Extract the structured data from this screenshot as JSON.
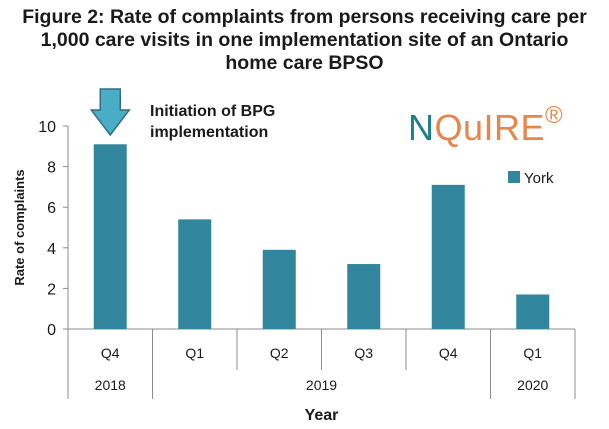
{
  "chart_data": {
    "type": "bar",
    "title_lines": [
      "Figure 2: Rate of complaints from persons receiving care per",
      "1,000 care visits in one implementation site of an Ontario",
      "home care BPSO"
    ],
    "xlabel": "Year",
    "ylabel": "Rate of complaints",
    "ylim": [
      0,
      10
    ],
    "yticks": [
      "0",
      "2",
      "4",
      "6",
      "8",
      "10"
    ],
    "categories": [
      "Q4",
      "Q1",
      "Q2",
      "Q3",
      "Q4",
      "Q1"
    ],
    "year_groups": [
      {
        "label": "2018",
        "span": 1
      },
      {
        "label": "2019",
        "span": 4
      },
      {
        "label": "2020",
        "span": 1
      }
    ],
    "series": [
      {
        "name": "York",
        "color": "#31859c",
        "values": [
          9.1,
          5.4,
          3.9,
          3.2,
          7.1,
          1.7
        ]
      }
    ],
    "legend_position": "right",
    "grid": false,
    "annotation": {
      "lines": [
        "Initiation of BPG",
        "implementation"
      ],
      "arrow_color": "#4bacc6",
      "target_category_index": 0,
      "icon": "down-arrow-icon"
    }
  },
  "logo": {
    "n": "N",
    "rest": "QuIRE",
    "reg": "®"
  }
}
